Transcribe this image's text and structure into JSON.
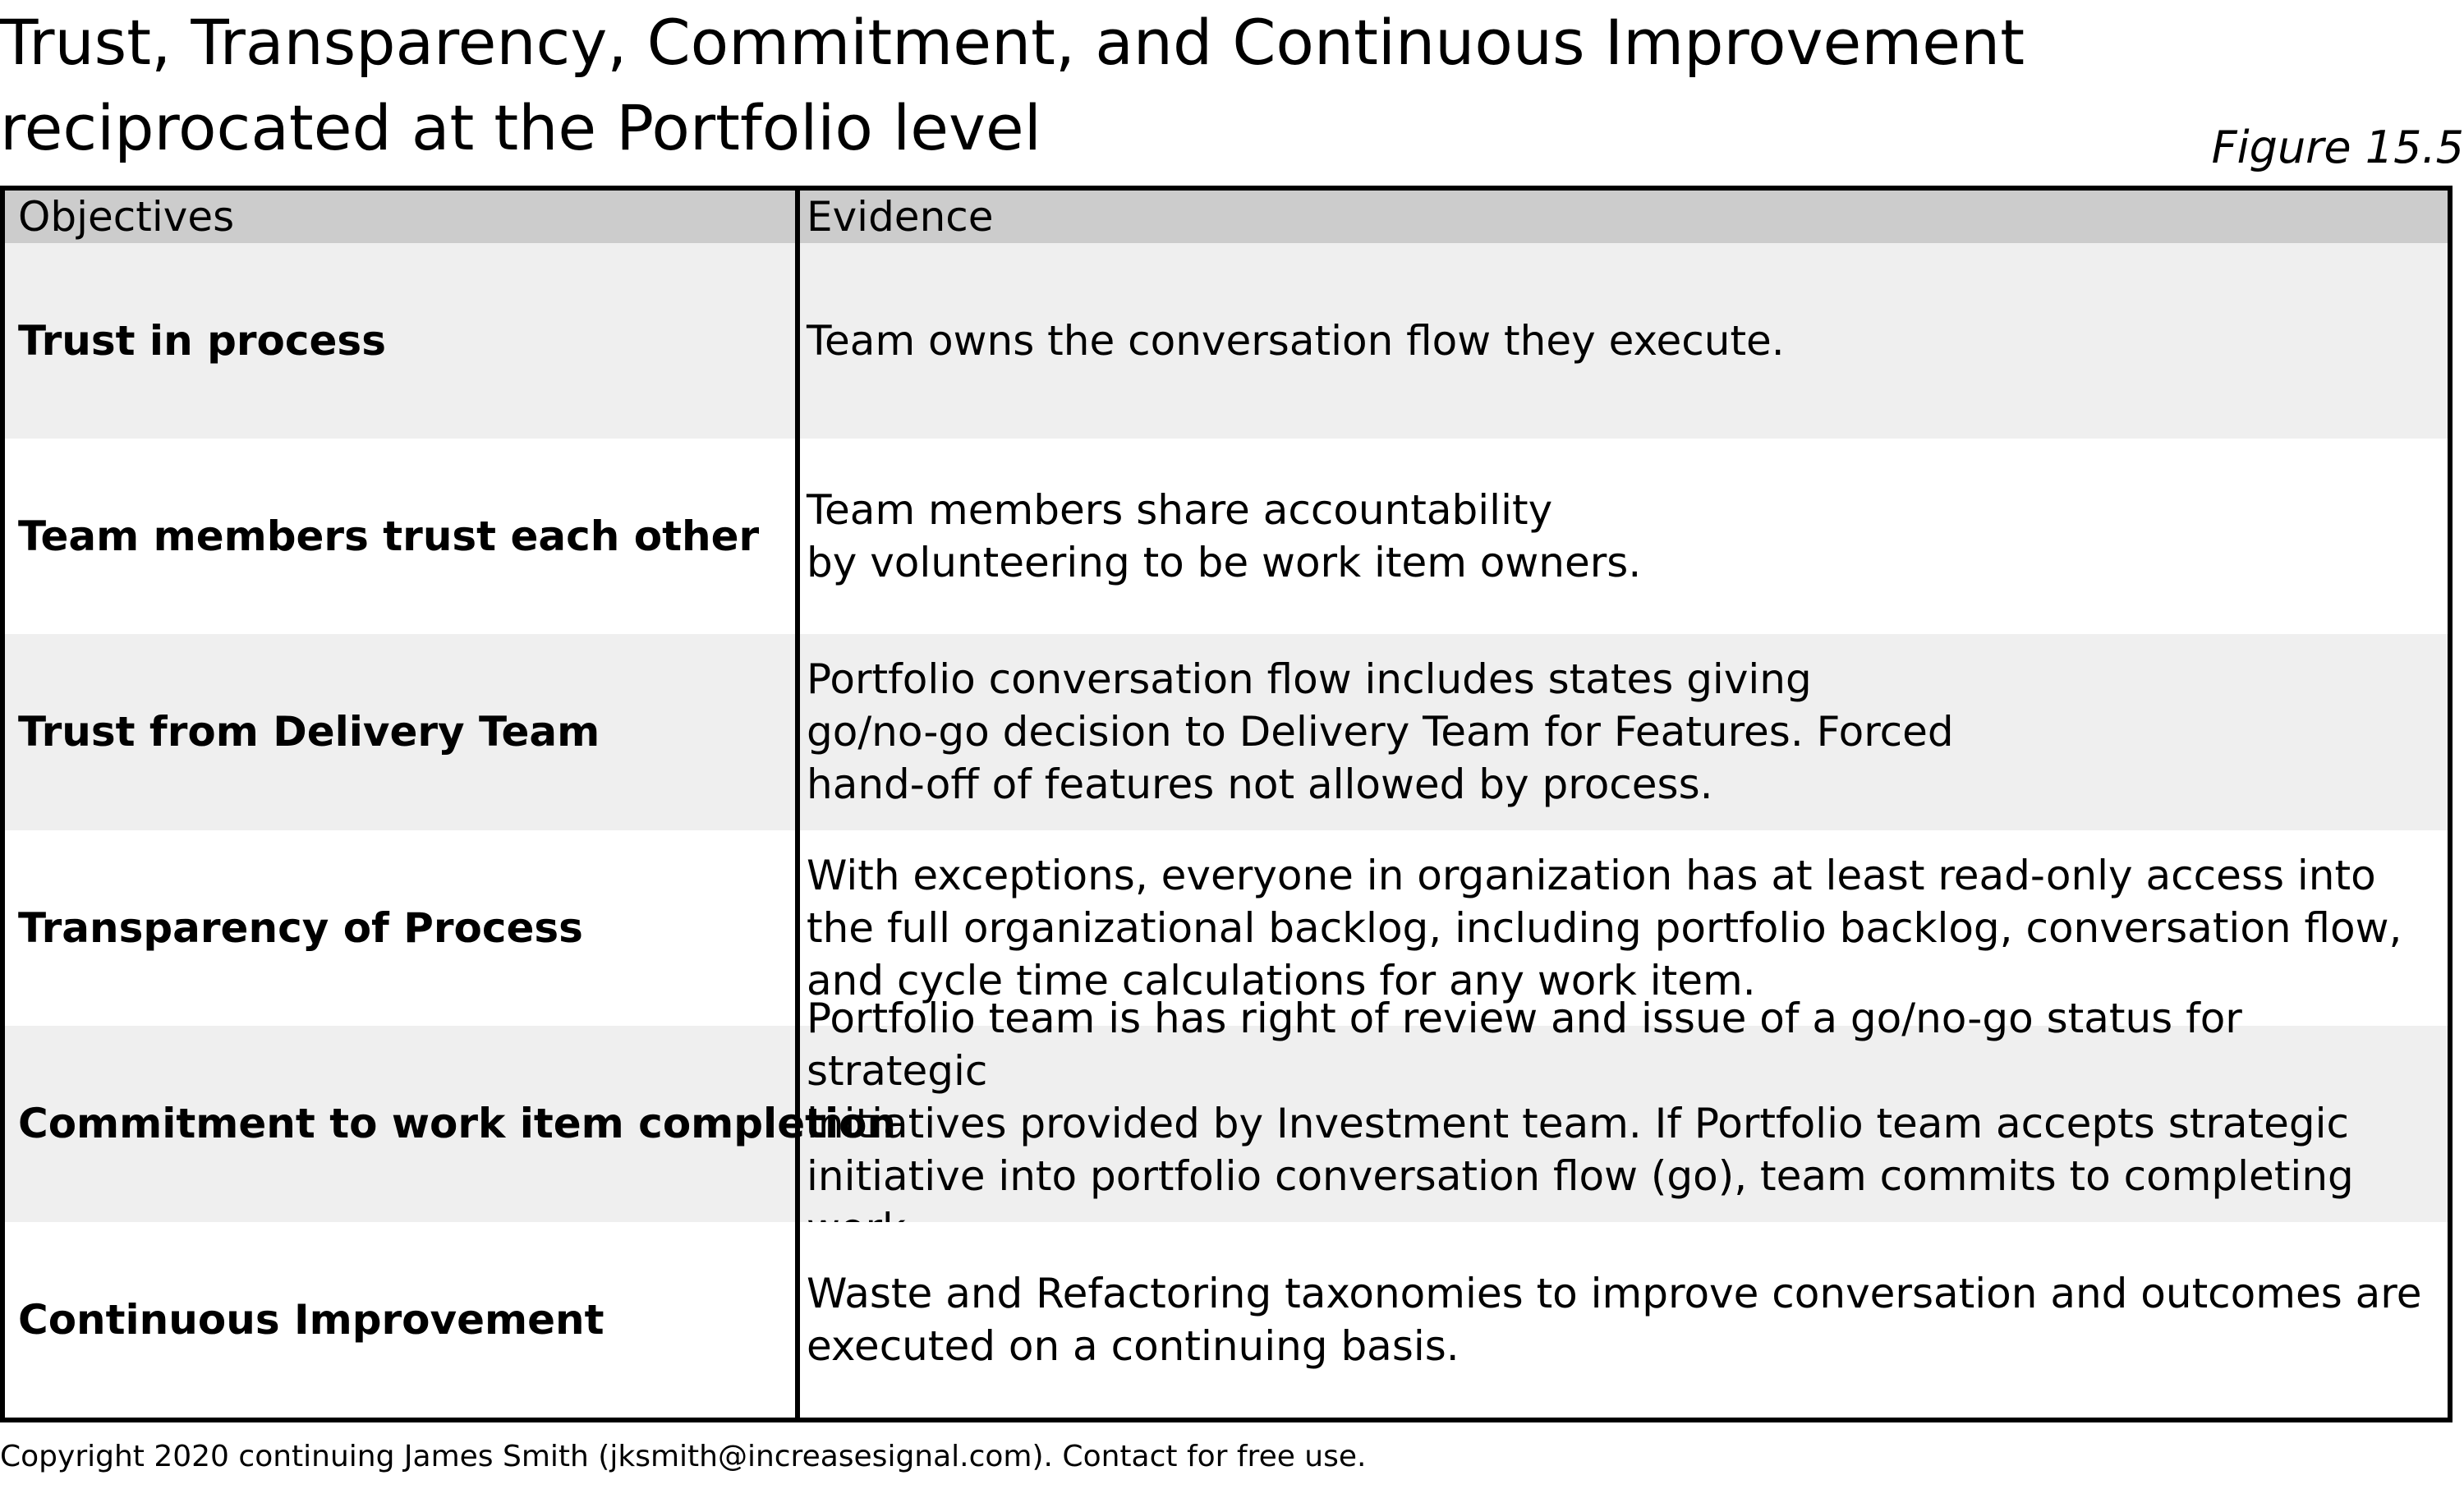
{
  "title": {
    "line1": "Trust, Transparency, Commitment, and Continuous Improvement",
    "line2": "reciprocated at the Portfolio level"
  },
  "figure_label": "Figure 15.5",
  "table": {
    "headers": {
      "objectives": "Objectives",
      "evidence": "Evidence"
    },
    "rows": [
      {
        "objective": "Trust in process",
        "evidence": "Team owns the conversation flow they execute."
      },
      {
        "objective": "Team members trust each other",
        "evidence": "Team members share accountability\nby volunteering to be work item owners."
      },
      {
        "objective": "Trust from Delivery Team",
        "evidence": "Portfolio conversation flow includes states giving\ngo/no-go decision to Delivery Team for Features. Forced\nhand-off of features not allowed by process."
      },
      {
        "objective": "Transparency of Process",
        "evidence": "With exceptions, everyone in organization has at least read-only access into\nthe full organizational backlog, including portfolio backlog, conversation flow,\nand cycle time calculations for any work item."
      },
      {
        "objective": "Commitment to work item completion",
        "evidence": "Portfolio team is has right of review and issue of a go/no-go status for strategic\ninitiatives provided by Investment team. If Portfolio team accepts strategic\ninitiative into portfolio conversation flow (go), team commits to completing work."
      },
      {
        "objective": "Continuous Improvement",
        "evidence": "Waste and Refactoring taxonomies to improve conversation and outcomes are\nexecuted on a continuing basis."
      }
    ]
  },
  "copyright": "Copyright 2020 continuing James Smith (jksmith@increasesignal.com). Contact for free use."
}
